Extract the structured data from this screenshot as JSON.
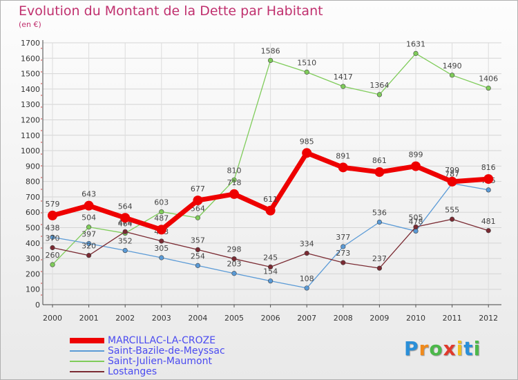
{
  "chart_data": {
    "type": "line",
    "title": "Evolution du Montant de la Dette par Habitant",
    "subtitle": "(en €)",
    "x": [
      "2000",
      "2001",
      "2002",
      "2003",
      "2004",
      "2005",
      "2006",
      "2007",
      "2008",
      "2009",
      "2010",
      "2011",
      "2012"
    ],
    "ylim": [
      0,
      1700
    ],
    "yticks": [
      0,
      100,
      200,
      300,
      400,
      500,
      600,
      700,
      800,
      900,
      1000,
      1100,
      1200,
      1300,
      1400,
      1500,
      1600,
      1700
    ],
    "grid": true,
    "legend_position": "bottom-left",
    "series": [
      {
        "name": "Saint-Julien-Maumont",
        "color": "#7fcc5a",
        "values": [
          260,
          504,
          464,
          603,
          564,
          810,
          1586,
          1510,
          1417,
          1364,
          1631,
          1490,
          1406
        ]
      },
      {
        "name": "Saint-Bazile-de-Meyssac",
        "color": "#5a9ad6",
        "values": [
          438,
          397,
          352,
          305,
          254,
          203,
          154,
          108,
          377,
          536,
          478,
          787,
          745
        ]
      },
      {
        "name": "Lostanges",
        "color": "#7a2a32",
        "values": [
          370,
          320,
          474,
          413,
          357,
          298,
          245,
          334,
          273,
          237,
          505,
          555,
          481
        ]
      },
      {
        "name": "MARCILLAC-LA-CROZE",
        "color": "#ee0000",
        "values": [
          579,
          643,
          564,
          487,
          677,
          718,
          611,
          985,
          891,
          861,
          899,
          799,
          816
        ]
      }
    ]
  },
  "logo": {
    "letters": [
      "P",
      "r",
      "o",
      "x",
      "i",
      "t",
      "i"
    ],
    "colors": [
      "#2a8fd8",
      "#f08a1c",
      "#4cb84a",
      "#e03a2c",
      "#f0c020",
      "#2a8fd8",
      "#4cb84a"
    ]
  }
}
